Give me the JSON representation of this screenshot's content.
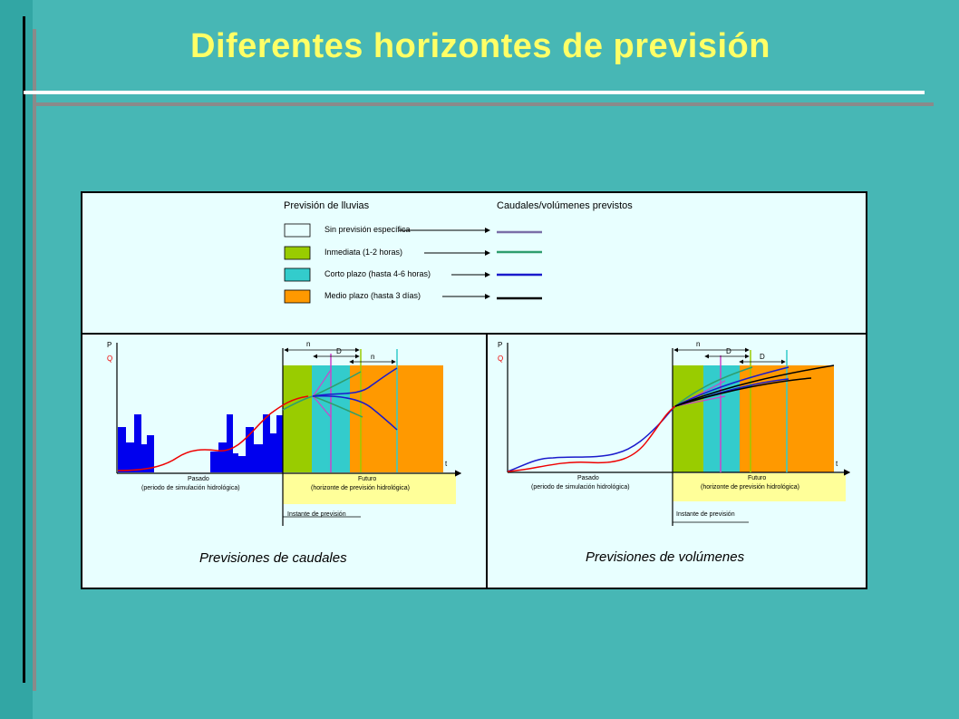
{
  "title": "Diferentes horizontes de previsión",
  "legend": {
    "rain_header": "Previsión de lluvias",
    "flow_header": "Caudales/volúmenes previstos",
    "items": [
      {
        "label": "Sin previsión específica",
        "swatch": "#e8ffff",
        "line": "#7a6fa8"
      },
      {
        "label": "Inmediata (1-2 horas)",
        "swatch": "#99cc00",
        "line": "#2e9e6e"
      },
      {
        "label": "Corto plazo (hasta 4-6 horas)",
        "swatch": "#33cccc",
        "line": "#1a1acc"
      },
      {
        "label": "Medio plazo (hasta 3 días)",
        "swatch": "#ff9900",
        "line": "#000000"
      }
    ]
  },
  "panels": [
    {
      "caption": "Previsiones de caudales",
      "p_label": "P",
      "q_label": "Q",
      "t_label": "t",
      "past_label": "Pasado",
      "past_sub": "(periodo de simulación hidrológica)",
      "future_label": "Futuro",
      "future_sub": "(horizonte de previsión hidrológica)",
      "instant_label": "Instante de previsión",
      "n_label": "n",
      "d_label": "D",
      "n2_label": "n"
    },
    {
      "caption": "Previsiones de volúmenes",
      "p_label": "P",
      "q_label": "Q",
      "t_label": "t",
      "past_label": "Pasado",
      "past_sub": "(periodo de simulación hidrológica)",
      "future_label": "Futuro",
      "future_sub": "(horizonte de previsión hidrológica)",
      "instant_label": "Instante de previsión",
      "n_label": "n",
      "d_label": "D",
      "n2_label": "D"
    }
  ]
}
